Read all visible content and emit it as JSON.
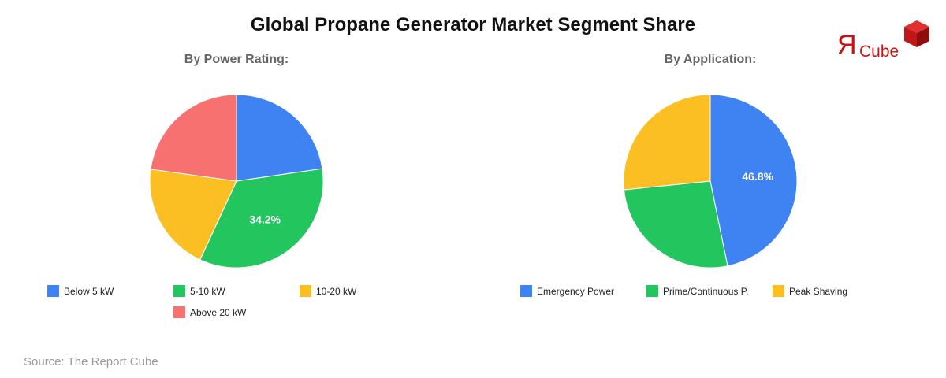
{
  "title": "Global Propane Generator Market Segment Share",
  "source": "Source: The Report Cube",
  "logo": {
    "symbol": "Я",
    "text": "Cube",
    "color": "#cc1111"
  },
  "chart_data": [
    {
      "type": "pie",
      "title": "By Power Rating:",
      "categories": [
        "Below 5 kW",
        "5-10 kW",
        "10-20 kW",
        "Above 20 kW"
      ],
      "values": [
        22.7,
        34.2,
        20.3,
        22.8
      ],
      "colors": [
        "#3f83f2",
        "#22c55e",
        "#fbbf24",
        "#f87171"
      ],
      "labels_shown": {
        "5-10 kW": "34.2%"
      },
      "start_angle": 0,
      "direction": "clockwise",
      "legend_position": "bottom"
    },
    {
      "type": "pie",
      "title": "By Application:",
      "categories": [
        "Emergency Power",
        "Prime/Continuous P.",
        "Peak Shaving"
      ],
      "values": [
        46.8,
        26.6,
        26.6
      ],
      "colors": [
        "#3f83f2",
        "#22c55e",
        "#fbbf24"
      ],
      "labels_shown": {
        "Emergency Power": "46.8%"
      },
      "start_angle": 0,
      "direction": "clockwise",
      "legend_position": "bottom"
    }
  ]
}
